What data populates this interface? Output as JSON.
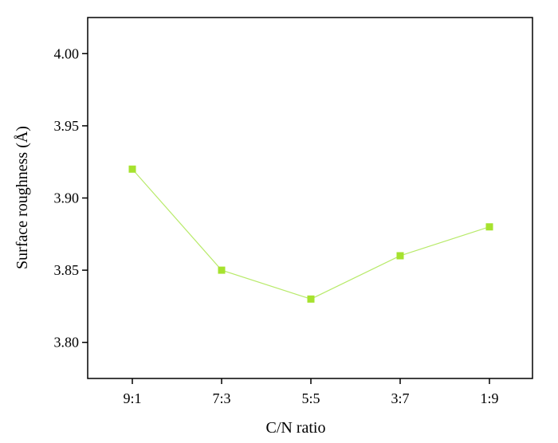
{
  "chart_data": {
    "type": "line",
    "title": "",
    "xlabel": "C/N ratio",
    "ylabel": "Surface roughness (Å)",
    "categories": [
      "9:1",
      "7:3",
      "5:5",
      "3:7",
      "1:9"
    ],
    "series": [
      {
        "values": [
          3.92,
          3.85,
          3.83,
          3.86,
          3.88
        ]
      }
    ],
    "ylim": [
      3.775,
      4.025
    ],
    "yticks": [
      3.8,
      3.85,
      3.9,
      3.95,
      4.0
    ],
    "ytick_labels": [
      "3.80",
      "3.85",
      "3.90",
      "3.95",
      "4.00"
    ],
    "grid": false,
    "legend": "none",
    "colors": {
      "series": "#a6e22e",
      "line": "#b8ea6a",
      "axis": "#000000"
    }
  }
}
